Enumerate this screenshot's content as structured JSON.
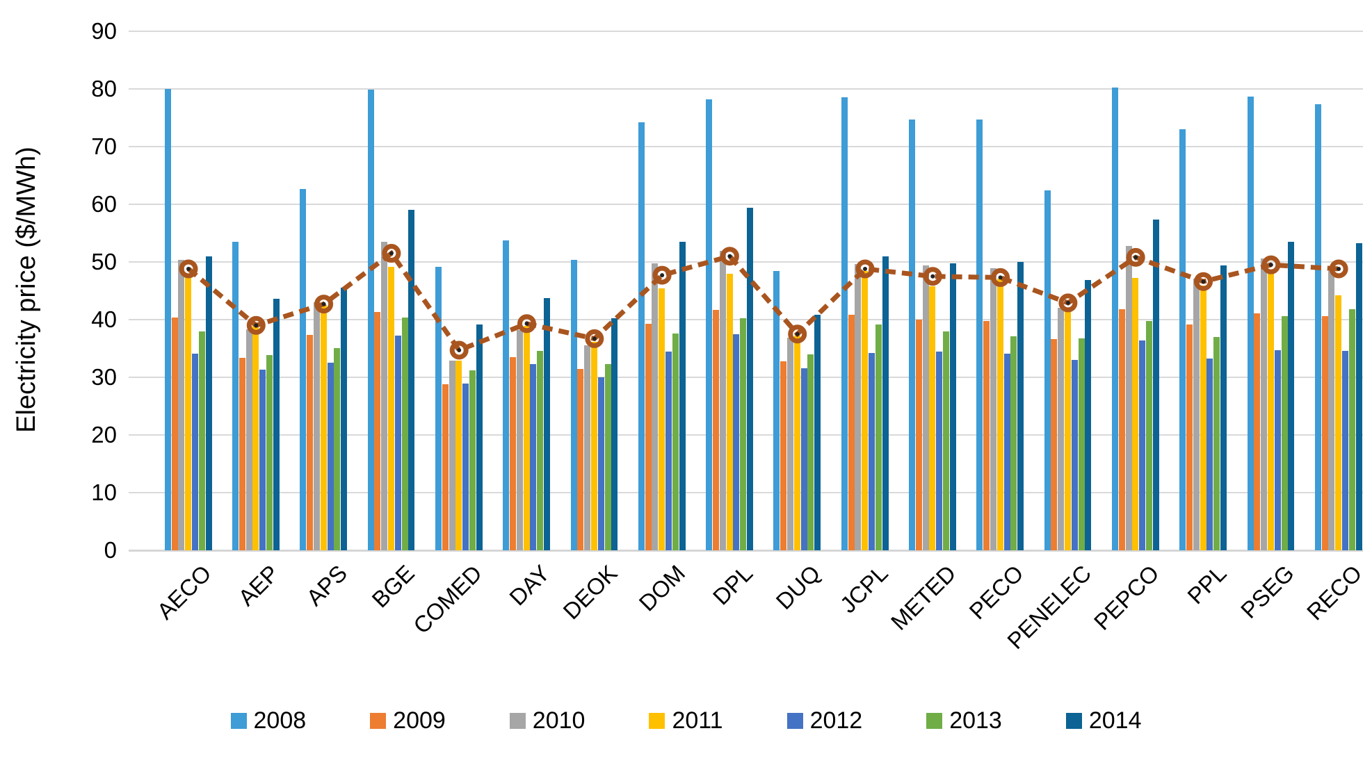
{
  "chart_data": {
    "type": "bar",
    "title": "",
    "xlabel": "",
    "ylabel": "Electricity price ($/MWh)",
    "ylim": [
      0,
      90
    ],
    "ytick_step": 10,
    "ytick_labels": [
      "0",
      "10",
      "20",
      "30",
      "40",
      "50",
      "60",
      "70",
      "80",
      "90"
    ],
    "grid": true,
    "legend_position": "bottom",
    "categories": [
      "AECO",
      "AEP",
      "APS",
      "BGE",
      "COMED",
      "DAY",
      "DEOK",
      "DOM",
      "DPL",
      "DUQ",
      "JCPL",
      "METED",
      "PECO",
      "PENELEC",
      "PEPCO",
      "PPL",
      "PSEG",
      "RECO"
    ],
    "series": [
      {
        "name": "2008",
        "color": "#3E9CD6",
        "values": [
          80.0,
          53.5,
          62.7,
          79.9,
          49.1,
          53.7,
          50.4,
          74.2,
          78.2,
          48.4,
          78.6,
          74.7,
          74.7,
          62.4,
          80.2,
          73.0,
          78.7,
          77.4
        ]
      },
      {
        "name": "2009",
        "color": "#ED7D31",
        "values": [
          40.4,
          33.4,
          37.4,
          41.3,
          28.8,
          33.5,
          31.4,
          39.3,
          41.7,
          32.8,
          40.9,
          40.0,
          39.7,
          36.6,
          41.8,
          39.2,
          41.1,
          40.6
        ]
      },
      {
        "name": "2010",
        "color": "#A6A6A6",
        "values": [
          50.4,
          38.3,
          43.0,
          53.5,
          32.9,
          38.2,
          35.5,
          49.7,
          51.9,
          36.9,
          49.6,
          49.4,
          48.9,
          42.1,
          52.8,
          47.1,
          50.6,
          48.4
        ]
      },
      {
        "name": "2011",
        "color": "#FFC000",
        "values": [
          47.5,
          38.9,
          42.5,
          49.1,
          32.9,
          38.9,
          36.1,
          45.4,
          47.9,
          37.2,
          48.4,
          45.8,
          47.1,
          41.6,
          47.2,
          45.9,
          48.2,
          44.2
        ]
      },
      {
        "name": "2012",
        "color": "#4472C4",
        "values": [
          34.1,
          31.3,
          32.5,
          37.2,
          28.9,
          32.3,
          30.0,
          34.4,
          37.5,
          31.6,
          34.2,
          34.5,
          34.1,
          33.0,
          36.4,
          33.2,
          34.7,
          34.6
        ]
      },
      {
        "name": "2013",
        "color": "#70AD47",
        "values": [
          37.9,
          33.9,
          35.1,
          40.4,
          31.2,
          34.6,
          32.3,
          37.6,
          40.3,
          34.0,
          39.2,
          37.9,
          37.1,
          36.8,
          39.7,
          37.0,
          40.6,
          41.8
        ]
      },
      {
        "name": "2014",
        "color": "#0C6394",
        "values": [
          51.0,
          43.6,
          45.6,
          59.0,
          39.2,
          43.7,
          40.2,
          53.5,
          59.4,
          40.9,
          51.0,
          49.7,
          50.0,
          46.9,
          57.3,
          49.4,
          53.5,
          53.2
        ]
      }
    ],
    "line_overlay": {
      "name": "dashed-average-line",
      "color": "#A9551F",
      "style": "dashed",
      "marker": "circle-with-dot",
      "values": [
        48.8,
        39.0,
        42.7,
        51.5,
        34.7,
        39.3,
        36.7,
        47.7,
        51.0,
        37.5,
        48.8,
        47.5,
        47.3,
        42.9,
        50.8,
        46.6,
        49.5,
        48.8
      ]
    }
  }
}
